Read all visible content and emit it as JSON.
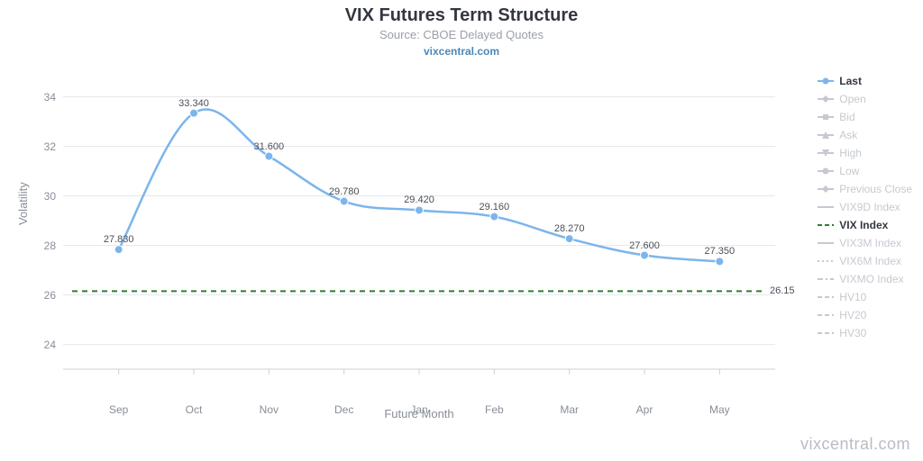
{
  "title": "VIX Futures Term Structure",
  "subtitle": "Source: CBOE Delayed Quotes",
  "source_link": "vixcentral.com",
  "watermark": "vixcentral.com",
  "yaxis_title": "Volatility",
  "xaxis_title": "Future Month",
  "chart": {
    "type": "line",
    "background_color": "#ffffff",
    "grid_color": "#e6e8ec",
    "axis_line_color": "#cdd1d8",
    "text_color": "#888e98",
    "ylim": [
      23,
      35
    ],
    "ytick_step": 2,
    "yticks": [
      24,
      26,
      28,
      30,
      32,
      34
    ],
    "x_categories": [
      "Sep",
      "Oct",
      "Nov",
      "Dec",
      "Jan",
      "Feb",
      "Mar",
      "Apr",
      "May"
    ],
    "series_last": {
      "color": "#7cb5ec",
      "marker_fill": "#7cb5ec",
      "marker_stroke": "#ffffff",
      "line_width": 2.5,
      "marker_radius": 4.5,
      "values": [
        27.83,
        33.34,
        31.6,
        29.78,
        29.42,
        29.16,
        28.27,
        27.6,
        27.35
      ],
      "labels": [
        "27.830",
        "33.340",
        "31.600",
        "29.780",
        "29.420",
        "29.160",
        "28.270",
        "27.600",
        "27.350"
      ]
    },
    "vix_index": {
      "color": "#2e7d32",
      "dash": "6,5",
      "line_width": 2,
      "value": 26.15,
      "label": "26.15"
    }
  },
  "legend": {
    "items": [
      {
        "label": "Last",
        "active": true,
        "color": "#7cb5ec",
        "marker": "circle"
      },
      {
        "label": "Open",
        "active": false,
        "color": "#c5c9d0",
        "marker": "diamond"
      },
      {
        "label": "Bid",
        "active": false,
        "color": "#c5c9d0",
        "marker": "square"
      },
      {
        "label": "Ask",
        "active": false,
        "color": "#c5c9d0",
        "marker": "triangle"
      },
      {
        "label": "High",
        "active": false,
        "color": "#c5c9d0",
        "marker": "tri-down"
      },
      {
        "label": "Low",
        "active": false,
        "color": "#c5c9d0",
        "marker": "circle"
      },
      {
        "label": "Previous Close",
        "active": false,
        "color": "#c5c9d0",
        "marker": "diamond"
      },
      {
        "label": "VIX9D Index",
        "active": false,
        "color": "#c5c9d0",
        "marker": "line"
      },
      {
        "label": "VIX Index",
        "active": true,
        "color": "#2e7d32",
        "marker": "dash"
      },
      {
        "label": "VIX3M Index",
        "active": false,
        "color": "#c5c9d0",
        "marker": "line"
      },
      {
        "label": "VIX6M Index",
        "active": false,
        "color": "#c5c9d0",
        "marker": "dots"
      },
      {
        "label": "VIXMO Index",
        "active": false,
        "color": "#c5c9d0",
        "marker": "dashdot"
      },
      {
        "label": "HV10",
        "active": false,
        "color": "#c5c9d0",
        "marker": "dash"
      },
      {
        "label": "HV20",
        "active": false,
        "color": "#c5c9d0",
        "marker": "dash"
      },
      {
        "label": "HV30",
        "active": false,
        "color": "#c5c9d0",
        "marker": "dash"
      }
    ]
  }
}
